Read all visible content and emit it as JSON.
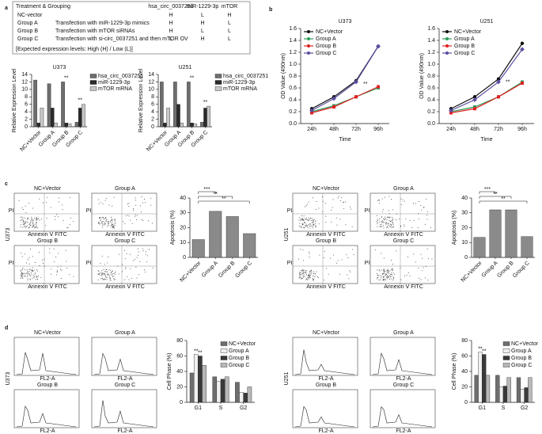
{
  "panel_labels": [
    "a",
    "b",
    "c",
    "d"
  ],
  "table": {
    "title": "Treatment & Grouping",
    "columns": [
      "hsa_circ_0037251",
      "miR-1229-3p",
      "mTOR"
    ],
    "rows": [
      {
        "group": "NC-vector",
        "levels": [
          "H",
          "L",
          "H"
        ]
      },
      {
        "group": "Group A",
        "treatment": "Transfection with miR-1229-3p mimics",
        "levels": [
          "H",
          "H",
          "L"
        ]
      },
      {
        "group": "Group B",
        "treatment": "Transfection with mTOR siRNAs",
        "levels": [
          "H",
          "L",
          "L"
        ]
      },
      {
        "group": "Group C",
        "treatment": "Transfection with si-circ_0037251 and then mTOR OV",
        "levels": [
          "L",
          "H",
          "L"
        ]
      }
    ],
    "footer": "[Expected expression levels: High (H) / Low (L)]"
  },
  "panel_c": {
    "cell_lines": [
      "U373",
      "U251"
    ],
    "groups": [
      "NC+Vector",
      "Group A",
      "Group B",
      "Group C"
    ],
    "x_label": "Annexin Ⅴ FITC",
    "y_label": "PI"
  },
  "panel_d": {
    "cell_lines": [
      "U373",
      "U251"
    ],
    "groups": [
      "NC+Vector",
      "Group A",
      "Group B",
      "Group C"
    ],
    "x_label": "FL2-A"
  },
  "chart_data": [
    {
      "type": "bar",
      "title": "U373",
      "y_label": "Relative Expression Level",
      "categories": [
        "NC+Vector",
        "Group A",
        "Group B",
        "Group C"
      ],
      "series": [
        {
          "name": "hsa_circ_0037251",
          "color": "#6e6e6e",
          "values": [
            12.5,
            11.5,
            12,
            1.2
          ]
        },
        {
          "name": "miR-1229-3p",
          "color": "#2a2a2a",
          "values": [
            1,
            5,
            1,
            5
          ]
        },
        {
          "name": "mTOR mRNA",
          "color": "#c8c8c8",
          "values": [
            5,
            1,
            0.8,
            6
          ]
        }
      ],
      "annotations": [
        null,
        null,
        "**",
        "**"
      ],
      "ylim": [
        0,
        14
      ],
      "yticks": [
        0,
        2,
        4,
        6,
        8,
        10,
        12,
        14
      ]
    },
    {
      "type": "bar",
      "title": "U251",
      "y_label": "Relative Expression Level",
      "categories": [
        "NC+Vector",
        "Group A",
        "Group B",
        "Group C"
      ],
      "series": [
        {
          "name": "hsa_circ_0037251",
          "color": "#6e6e6e",
          "values": [
            12,
            12,
            12,
            1.2
          ]
        },
        {
          "name": "miR-1229-3p",
          "color": "#2a2a2a",
          "values": [
            1,
            6,
            1,
            5
          ]
        },
        {
          "name": "mTOR mRNA",
          "color": "#c8c8c8",
          "values": [
            5,
            1,
            0.8,
            5.5
          ]
        }
      ],
      "annotations": [
        null,
        null,
        "**",
        "**"
      ],
      "ylim": [
        0,
        14
      ],
      "yticks": [
        0,
        2,
        4,
        6,
        8,
        10,
        12,
        14
      ]
    },
    {
      "type": "line",
      "title": "U373",
      "y_label": "OD Value (490nm)",
      "x_label": "Time",
      "categories": [
        "24h",
        "48h",
        "72h",
        "96h"
      ],
      "series": [
        {
          "name": "NC+Vector",
          "color": "#111111",
          "values": [
            0.25,
            0.45,
            0.72,
            1.3
          ]
        },
        {
          "name": "Group A",
          "color": "#2e9e5b",
          "values": [
            0.2,
            0.3,
            0.45,
            0.6
          ]
        },
        {
          "name": "Group B",
          "color": "#e02020",
          "values": [
            0.18,
            0.28,
            0.45,
            0.62
          ]
        },
        {
          "name": "Group C",
          "color": "#5a4fa0",
          "values": [
            0.22,
            0.42,
            0.7,
            1.3
          ]
        }
      ],
      "annotations": [
        null,
        null,
        "**",
        null
      ],
      "ylim": [
        0,
        1.6
      ],
      "yticks": [
        {
          "value": 0,
          "label": "0.0"
        },
        0.2,
        0.4,
        0.6,
        0.8,
        {
          "value": 1,
          "label": "1.0"
        },
        1.2,
        1.4,
        1.6
      ]
    },
    {
      "type": "line",
      "title": "U251",
      "y_label": "OD Value (490nm)",
      "x_label": "Time",
      "categories": [
        "24h",
        "48h",
        "72h",
        "96h"
      ],
      "series": [
        {
          "name": "NC+Vector",
          "color": "#111111",
          "values": [
            0.25,
            0.45,
            0.75,
            1.35
          ]
        },
        {
          "name": "Group A",
          "color": "#2e9e5b",
          "values": [
            0.2,
            0.28,
            0.45,
            0.7
          ]
        },
        {
          "name": "Group B",
          "color": "#e02020",
          "values": [
            0.18,
            0.25,
            0.45,
            0.68
          ]
        },
        {
          "name": "Group C",
          "color": "#5a4fa0",
          "values": [
            0.22,
            0.4,
            0.7,
            1.25
          ]
        }
      ],
      "annotations": [
        null,
        null,
        "**",
        null
      ],
      "ylim": [
        0,
        1.6
      ],
      "yticks": [
        {
          "value": 0,
          "label": "0.0"
        },
        0.2,
        0.4,
        0.6,
        0.8,
        {
          "value": 1,
          "label": "1.0"
        },
        1.2,
        1.4,
        1.6
      ]
    },
    {
      "type": "bar",
      "y_label": "Apoptosis (%)",
      "categories": [
        "NC+Vector",
        "Group A",
        "Group B",
        "Group C"
      ],
      "values": [
        12,
        31,
        27.5,
        16
      ],
      "color": "#8a8a8a",
      "annotations": [
        null,
        "***",
        "**",
        "**"
      ],
      "ylim": [
        0,
        40
      ],
      "yticks": [
        0,
        10,
        20,
        30,
        40
      ]
    },
    {
      "type": "bar",
      "y_label": "Apoptosis (%)",
      "categories": [
        "NC+Vector",
        "Group A",
        "Group B",
        "Group C"
      ],
      "values": [
        13.5,
        32,
        32,
        14
      ],
      "color": "#8a8a8a",
      "annotations": [
        null,
        "***",
        "**",
        "**"
      ],
      "ylim": [
        0,
        40
      ],
      "yticks": [
        0,
        10,
        20,
        30,
        40
      ]
    },
    {
      "type": "bar",
      "y_label": "Cell Phase (%)",
      "categories": [
        "G1",
        "S",
        "G2"
      ],
      "series": [
        {
          "name": "NC+Vector",
          "color": "#6e6e6e",
          "values": [
            38,
            33,
            26
          ]
        },
        {
          "name": "Group A",
          "color": "#f0f0f0",
          "values": [
            62,
            27,
            13
          ],
          "annotations": [
            "**",
            null,
            null
          ]
        },
        {
          "name": "Group B",
          "color": "#3a3a3a",
          "values": [
            60,
            30,
            12
          ],
          "annotations": [
            "**",
            null,
            null
          ]
        },
        {
          "name": "Group C",
          "color": "#b8b8b8",
          "values": [
            48,
            33,
            20
          ]
        }
      ],
      "ylim": [
        0,
        80
      ],
      "yticks": [
        0,
        20,
        40,
        60,
        80
      ]
    },
    {
      "type": "bar",
      "y_label": "Cell Phase (%)",
      "categories": [
        "G1",
        "S",
        "G2"
      ],
      "series": [
        {
          "name": "NC+Vector",
          "color": "#6e6e6e",
          "values": [
            35,
            35,
            32
          ]
        },
        {
          "name": "Group A",
          "color": "#f0f0f0",
          "values": [
            65,
            20,
            17
          ],
          "annotations": [
            "**",
            null,
            null
          ]
        },
        {
          "name": "Group B",
          "color": "#3a3a3a",
          "values": [
            62,
            21,
            19
          ],
          "annotations": [
            "**",
            null,
            null
          ]
        },
        {
          "name": "Group C",
          "color": "#b8b8b8",
          "values": [
            35,
            32,
            32
          ]
        }
      ],
      "ylim": [
        0,
        80
      ],
      "yticks": [
        0,
        20,
        40,
        60,
        80
      ]
    }
  ]
}
